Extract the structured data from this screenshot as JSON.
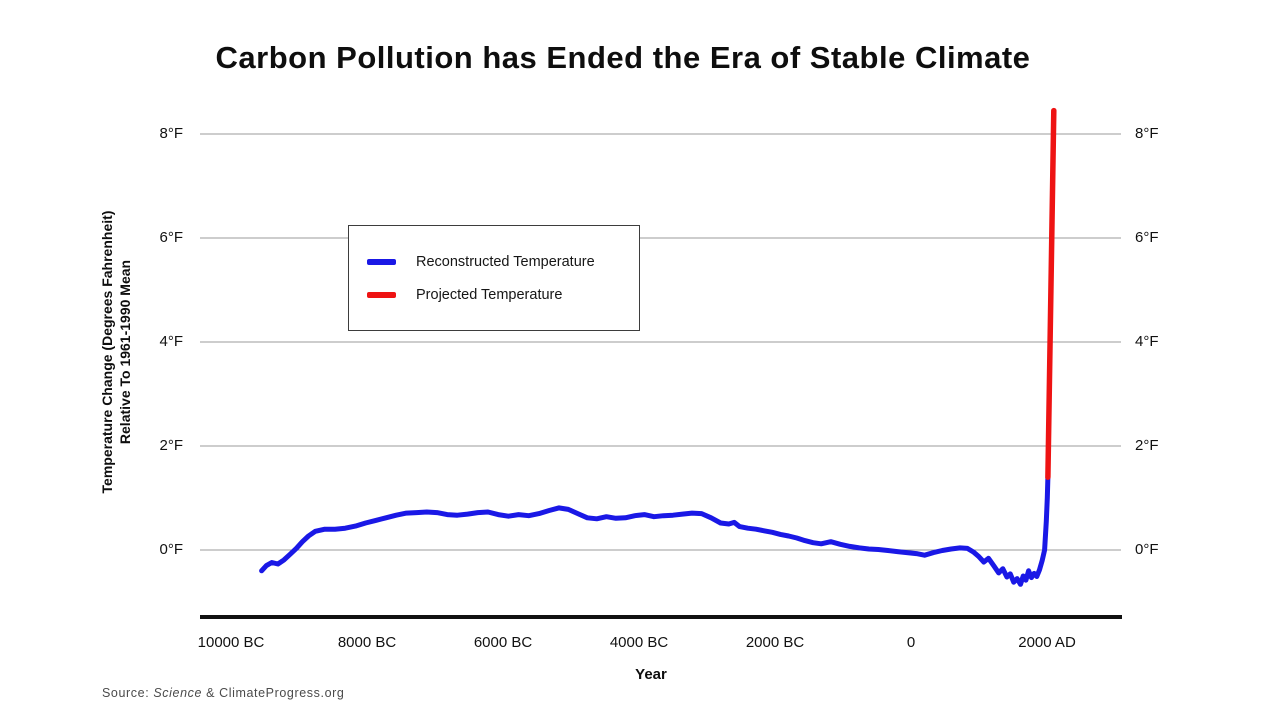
{
  "chart_data": {
    "type": "line",
    "title": "Carbon Pollution has Ended the Era of Stable Climate",
    "xlabel": "Year",
    "ylabel": [
      "Temperature Change (Degrees Fahrenheit)",
      "Relative To 1961-1990 Mean"
    ],
    "x_ticks": [
      {
        "year": -10000,
        "label": "10000 BC"
      },
      {
        "year": -8000,
        "label": "8000 BC"
      },
      {
        "year": -6000,
        "label": "6000 BC"
      },
      {
        "year": -4000,
        "label": "4000 BC"
      },
      {
        "year": -2000,
        "label": "2000 BC"
      },
      {
        "year": 0,
        "label": "0"
      },
      {
        "year": 2000,
        "label": "2000 AD"
      }
    ],
    "y_ticks": [
      {
        "value": 0,
        "label": "0°F"
      },
      {
        "value": 2,
        "label": "2°F"
      },
      {
        "value": 4,
        "label": "4°F"
      },
      {
        "value": 6,
        "label": "6°F"
      },
      {
        "value": 8,
        "label": "8°F"
      }
    ],
    "xlim": [
      -10450,
      3090
    ],
    "ylim": [
      -1.25,
      8.65
    ],
    "grid": true,
    "legend_position": "upper-left-inside",
    "series": [
      {
        "id": "reconstructed",
        "name": "Reconstructed Temperature",
        "color": "#1a18e6",
        "units": "degrees F relative to 1961-1990 mean",
        "points": [
          [
            -9550,
            -0.4
          ],
          [
            -9480,
            -0.3
          ],
          [
            -9400,
            -0.24
          ],
          [
            -9310,
            -0.27
          ],
          [
            -9220,
            -0.19
          ],
          [
            -9130,
            -0.08
          ],
          [
            -9040,
            0.03
          ],
          [
            -8950,
            0.16
          ],
          [
            -8860,
            0.27
          ],
          [
            -8760,
            0.36
          ],
          [
            -8620,
            0.4
          ],
          [
            -8470,
            0.4
          ],
          [
            -8320,
            0.42
          ],
          [
            -8170,
            0.46
          ],
          [
            -8020,
            0.52
          ],
          [
            -7870,
            0.57
          ],
          [
            -7720,
            0.62
          ],
          [
            -7570,
            0.67
          ],
          [
            -7420,
            0.71
          ],
          [
            -7270,
            0.72
          ],
          [
            -7120,
            0.73
          ],
          [
            -6970,
            0.72
          ],
          [
            -6820,
            0.68
          ],
          [
            -6670,
            0.67
          ],
          [
            -6520,
            0.69
          ],
          [
            -6370,
            0.72
          ],
          [
            -6220,
            0.73
          ],
          [
            -6070,
            0.68
          ],
          [
            -5920,
            0.65
          ],
          [
            -5770,
            0.68
          ],
          [
            -5620,
            0.66
          ],
          [
            -5470,
            0.7
          ],
          [
            -5320,
            0.76
          ],
          [
            -5180,
            0.81
          ],
          [
            -5040,
            0.78
          ],
          [
            -4900,
            0.7
          ],
          [
            -4760,
            0.62
          ],
          [
            -4620,
            0.6
          ],
          [
            -4480,
            0.64
          ],
          [
            -4340,
            0.61
          ],
          [
            -4200,
            0.62
          ],
          [
            -4060,
            0.66
          ],
          [
            -3920,
            0.68
          ],
          [
            -3780,
            0.64
          ],
          [
            -3640,
            0.66
          ],
          [
            -3500,
            0.67
          ],
          [
            -3360,
            0.69
          ],
          [
            -3220,
            0.71
          ],
          [
            -3080,
            0.7
          ],
          [
            -2940,
            0.62
          ],
          [
            -2800,
            0.52
          ],
          [
            -2680,
            0.5
          ],
          [
            -2600,
            0.53
          ],
          [
            -2520,
            0.45
          ],
          [
            -2400,
            0.42
          ],
          [
            -2280,
            0.4
          ],
          [
            -2160,
            0.37
          ],
          [
            -2040,
            0.34
          ],
          [
            -1920,
            0.3
          ],
          [
            -1800,
            0.27
          ],
          [
            -1680,
            0.23
          ],
          [
            -1560,
            0.18
          ],
          [
            -1440,
            0.14
          ],
          [
            -1320,
            0.12
          ],
          [
            -1180,
            0.16
          ],
          [
            -1040,
            0.11
          ],
          [
            -900,
            0.07
          ],
          [
            -760,
            0.04
          ],
          [
            -620,
            0.02
          ],
          [
            -480,
            0.01
          ],
          [
            -340,
            -0.01
          ],
          [
            -200,
            -0.03
          ],
          [
            -60,
            -0.05
          ],
          [
            80,
            -0.07
          ],
          [
            200,
            -0.1
          ],
          [
            330,
            -0.05
          ],
          [
            460,
            -0.01
          ],
          [
            590,
            0.02
          ],
          [
            720,
            0.04
          ],
          [
            830,
            0.03
          ],
          [
            920,
            -0.04
          ],
          [
            1000,
            -0.13
          ],
          [
            1070,
            -0.23
          ],
          [
            1140,
            -0.16
          ],
          [
            1220,
            -0.31
          ],
          [
            1290,
            -0.44
          ],
          [
            1350,
            -0.36
          ],
          [
            1410,
            -0.52
          ],
          [
            1460,
            -0.46
          ],
          [
            1510,
            -0.62
          ],
          [
            1560,
            -0.55
          ],
          [
            1610,
            -0.66
          ],
          [
            1650,
            -0.5
          ],
          [
            1690,
            -0.58
          ],
          [
            1730,
            -0.4
          ],
          [
            1770,
            -0.53
          ],
          [
            1810,
            -0.45
          ],
          [
            1850,
            -0.51
          ],
          [
            1890,
            -0.38
          ],
          [
            1930,
            -0.2
          ],
          [
            1965,
            0.0
          ],
          [
            1990,
            0.55
          ],
          [
            2005,
            1.0
          ],
          [
            2013,
            1.4
          ]
        ]
      },
      {
        "id": "projected",
        "name": "Projected Temperature",
        "color": "#ee1313",
        "units": "degrees F relative to 1961-1990 mean",
        "points": [
          [
            2013,
            1.4
          ],
          [
            2100,
            8.45
          ]
        ]
      }
    ]
  },
  "source": {
    "prefix": "Source: ",
    "journal": "Science",
    "suffix": " & ClimateProgress.org"
  },
  "colors": {
    "grid": "#9b9b9b",
    "axis": "#111111",
    "background": "#ffffff"
  }
}
